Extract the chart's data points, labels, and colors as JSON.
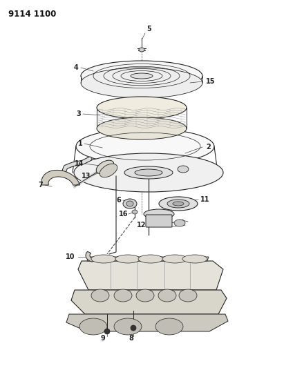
{
  "title": "9114 1100",
  "bg_color": "#ffffff",
  "line_color": "#222222",
  "label_color": "#111111",
  "title_fontsize": 8.5,
  "label_fontsize": 7,
  "fig_width": 4.11,
  "fig_height": 5.33,
  "dpi": 100
}
